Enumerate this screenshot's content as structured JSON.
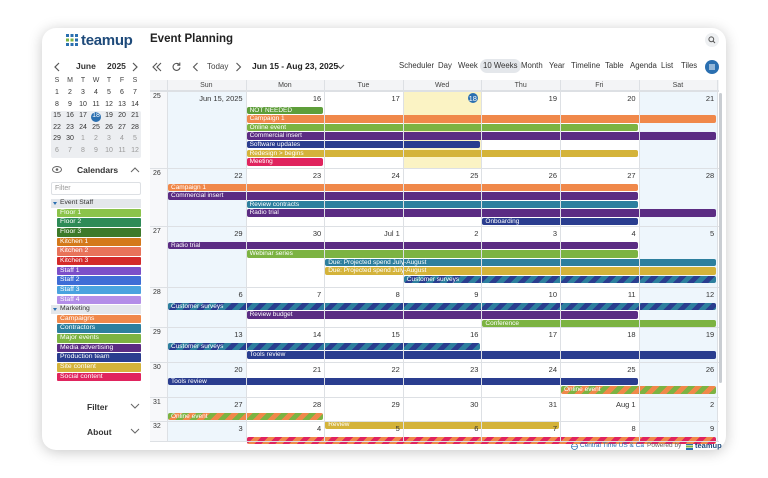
{
  "header": {
    "logo": "teamup",
    "title": "Event Planning"
  },
  "sidebar": {
    "month": "June",
    "year": "2025",
    "weekdays": [
      "S",
      "M",
      "T",
      "W",
      "T",
      "F",
      "S"
    ],
    "dates": [
      [
        1,
        2,
        3,
        4,
        5,
        6,
        7
      ],
      [
        8,
        9,
        10,
        11,
        12,
        13,
        14
      ],
      [
        15,
        16,
        17,
        18,
        19,
        20,
        21
      ],
      [
        22,
        23,
        24,
        25,
        26,
        27,
        28
      ],
      [
        29,
        30,
        1,
        2,
        3,
        4,
        5
      ],
      [
        6,
        7,
        8,
        9,
        10,
        11,
        12
      ]
    ],
    "calendars_title": "Calendars",
    "filter_placeholder": "Filter",
    "groups": [
      {
        "name": "Event Staff",
        "items": [
          {
            "name": "Floor 1",
            "color": "#8bc34a"
          },
          {
            "name": "Floor 2",
            "color": "#2e8b57"
          },
          {
            "name": "Floor 3",
            "color": "#3d7a2a"
          },
          {
            "name": "Kitchen 1",
            "color": "#d4791a"
          },
          {
            "name": "Kitchen 2",
            "color": "#e8735a"
          },
          {
            "name": "Kitchen 3",
            "color": "#d42a2a"
          },
          {
            "name": "Staff 1",
            "color": "#7b4fc9"
          },
          {
            "name": "Staff 2",
            "color": "#3e6dd6"
          },
          {
            "name": "Staff 3",
            "color": "#4aa3df"
          },
          {
            "name": "Staff 4",
            "color": "#b38ee8"
          }
        ]
      },
      {
        "name": "Marketing",
        "items": [
          {
            "name": "Campaigns",
            "color": "#f0884a"
          },
          {
            "name": "Contractors",
            "color": "#2d7f9e"
          },
          {
            "name": "Major events",
            "color": "#7cb342"
          },
          {
            "name": "Media advertising",
            "color": "#5b2c83"
          },
          {
            "name": "Production team",
            "color": "#2a3d8f"
          },
          {
            "name": "Site content",
            "color": "#d4b33a"
          },
          {
            "name": "Social content",
            "color": "#e0245e"
          }
        ]
      }
    ],
    "links": [
      "Filter",
      "About"
    ]
  },
  "toolbar": {
    "today": "Today",
    "range": "Jun 15 - Aug 23, 2025",
    "views": [
      {
        "label": "Scheduler"
      },
      {
        "label": "Day"
      },
      {
        "label": "Week"
      },
      {
        "label": "10 Weeks",
        "selected": true
      },
      {
        "label": "Month"
      },
      {
        "label": "Year"
      },
      {
        "label": "Timeline"
      },
      {
        "label": "Table"
      },
      {
        "label": "Agenda"
      },
      {
        "label": "List"
      },
      {
        "label": "Tiles"
      }
    ]
  },
  "calendar": {
    "weekdays": [
      "Sun",
      "Mon",
      "Tue",
      "Wed",
      "Thu",
      "Fri",
      "Sat"
    ],
    "weeks": [
      {
        "number": 25,
        "days": [
          "Jun 15, 2025",
          "16",
          "17",
          "18",
          "19",
          "20",
          "21"
        ],
        "events": [
          {
            "label": "NOT NEEDED",
            "start": 1,
            "end": 1,
            "color": "#5e9e3a"
          },
          {
            "label": "Campaign 1",
            "start": 1,
            "end": 6,
            "color": "#f0884a"
          },
          {
            "label": "Online event",
            "start": 1,
            "end": 5,
            "color": "#7cb342"
          },
          {
            "label": "Commercial insert",
            "start": 1,
            "end": 6,
            "color": "#5b2c83"
          },
          {
            "label": "Software updates",
            "start": 1,
            "end": 3,
            "color": "#2a3d8f"
          },
          {
            "label": "Redesign > begins",
            "start": 1,
            "end": 5,
            "color": "#d4b33a"
          },
          {
            "label": "Meeting",
            "start": 1,
            "end": 1,
            "color": "#e0245e"
          }
        ]
      },
      {
        "number": 26,
        "days": [
          "22",
          "23",
          "24",
          "25",
          "26",
          "27",
          "28"
        ],
        "events": [
          {
            "label": "Campaign 1",
            "start": 0,
            "end": 5,
            "color": "#f0884a"
          },
          {
            "label": "Commercial insert",
            "start": 0,
            "end": 5,
            "color": "#5b2c83"
          },
          {
            "label": "Review contracts",
            "start": 1,
            "end": 5,
            "color": "#2d7f9e"
          },
          {
            "label": "Radio trial",
            "start": 1,
            "end": 6,
            "color": "#5b2c83"
          },
          {
            "label": "Onboarding",
            "start": 4,
            "end": 5,
            "color": "#2a3d8f"
          }
        ]
      },
      {
        "number": 27,
        "days": [
          "29",
          "30",
          "Jul 1",
          "2",
          "3",
          "4",
          "5"
        ],
        "events": [
          {
            "label": "Radio trial",
            "start": 0,
            "end": 5,
            "color": "#5b2c83"
          },
          {
            "label": "Webinar series",
            "start": 1,
            "end": 5,
            "color": "#7cb342"
          },
          {
            "label": "Due: Projected spend July-August",
            "start": 2,
            "end": 6,
            "color": "#2d7f9e"
          },
          {
            "label": "Due: Projected spend July-August",
            "start": 2,
            "end": 6,
            "color": "#d4b33a"
          },
          {
            "label": "Customer surveys",
            "start": 3,
            "end": 6,
            "color": "#2d7f9e",
            "stripe": "#2a3d8f"
          }
        ]
      },
      {
        "number": 28,
        "days": [
          "6",
          "7",
          "8",
          "9",
          "10",
          "11",
          "12"
        ],
        "events": [
          {
            "label": "Customer surveys",
            "start": 0,
            "end": 6,
            "color": "#2d7f9e",
            "stripe": "#2a3d8f"
          },
          {
            "label": "Review budget",
            "start": 1,
            "end": 5,
            "color": "#5b2c83"
          },
          {
            "label": "Conference",
            "start": 4,
            "end": 6,
            "color": "#7cb342"
          }
        ]
      },
      {
        "number": 29,
        "days": [
          "13",
          "14",
          "15",
          "16",
          "17",
          "18",
          "19"
        ],
        "events": [
          {
            "label": "Customer surveys",
            "start": 0,
            "end": 3,
            "color": "#2d7f9e",
            "stripe": "#2a3d8f"
          },
          {
            "label": "Tools review",
            "start": 1,
            "end": 6,
            "color": "#2a3d8f"
          }
        ]
      },
      {
        "number": 30,
        "days": [
          "20",
          "21",
          "22",
          "23",
          "24",
          "25",
          "26"
        ],
        "events": [
          {
            "label": "Tools review",
            "start": 0,
            "end": 5,
            "color": "#2a3d8f"
          },
          {
            "label": "Online event",
            "start": 5,
            "end": 6,
            "color": "#7cb342",
            "stripe": "#f0884a"
          }
        ]
      },
      {
        "number": 31,
        "days": [
          "27",
          "28",
          "29",
          "30",
          "31",
          "Aug 1",
          "2"
        ],
        "events": [
          {
            "label": "Online event",
            "start": 0,
            "end": 1,
            "color": "#7cb342",
            "stripe": "#f0884a"
          },
          {
            "label": "Review",
            "start": 2,
            "end": 4,
            "color": "#d4b33a"
          }
        ]
      },
      {
        "number": 32,
        "days": [
          "3",
          "4",
          "5",
          "6",
          "7",
          "8",
          "9"
        ],
        "events": [
          {
            "start": 1,
            "end": 6,
            "color": "#e0245e",
            "stripe": "#f0884a"
          }
        ]
      }
    ]
  },
  "footer": {
    "timezone": "Central Time US & Ca",
    "powered": "Powered by",
    "brand": "teamup"
  }
}
